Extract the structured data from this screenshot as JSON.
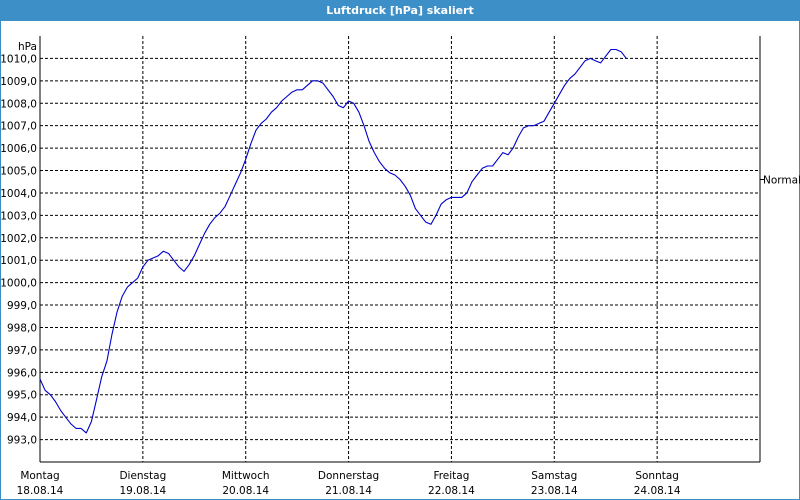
{
  "window": {
    "title": "Luftdruck [hPa] skaliert"
  },
  "chart_data": {
    "type": "line",
    "ylabel": "hPa",
    "ylim": [
      992.0,
      1011.0
    ],
    "yticks": [
      993.0,
      994.0,
      995.0,
      996.0,
      997.0,
      998.0,
      999.0,
      1000.0,
      1001.0,
      1002.0,
      1003.0,
      1004.0,
      1005.0,
      1006.0,
      1007.0,
      1008.0,
      1009.0,
      1010.0
    ],
    "ytick_labels": [
      "993,0",
      "994,0",
      "995,0",
      "996,0",
      "997,0",
      "998,0",
      "999,0",
      "1000,0",
      "1001,0",
      "1002,0",
      "1003,0",
      "1004,0",
      "1005,0",
      "1006,0",
      "1007,0",
      "1008,0",
      "1009,0",
      "1010,0"
    ],
    "xlim": [
      0,
      7
    ],
    "x_ticks": [
      {
        "day": "Montag",
        "date": "18.08.14"
      },
      {
        "day": "Dienstag",
        "date": "19.08.14"
      },
      {
        "day": "Mittwoch",
        "date": "20.08.14"
      },
      {
        "day": "Donnerstag",
        "date": "21.08.14"
      },
      {
        "day": "Freitag",
        "date": "22.08.14"
      },
      {
        "day": "Samstag",
        "date": "23.08.14"
      },
      {
        "day": "Sonntag",
        "date": "24.08.14"
      }
    ],
    "reference": {
      "label": "Normal",
      "value": 1004.6
    },
    "grid": true,
    "series": [
      {
        "color": "#0000cc",
        "points": [
          [
            0.0,
            995.7
          ],
          [
            0.05,
            995.2
          ],
          [
            0.1,
            995.0
          ],
          [
            0.15,
            994.7
          ],
          [
            0.2,
            994.3
          ],
          [
            0.25,
            994.0
          ],
          [
            0.3,
            993.7
          ],
          [
            0.35,
            993.5
          ],
          [
            0.4,
            993.5
          ],
          [
            0.45,
            993.3
          ],
          [
            0.5,
            993.8
          ],
          [
            0.55,
            994.8
          ],
          [
            0.6,
            995.8
          ],
          [
            0.65,
            996.5
          ],
          [
            0.7,
            997.7
          ],
          [
            0.75,
            998.7
          ],
          [
            0.8,
            999.4
          ],
          [
            0.85,
            999.8
          ],
          [
            0.9,
            1000.0
          ],
          [
            0.95,
            1000.2
          ],
          [
            1.0,
            1000.7
          ],
          [
            1.05,
            1001.0
          ],
          [
            1.1,
            1001.1
          ],
          [
            1.15,
            1001.2
          ],
          [
            1.2,
            1001.4
          ],
          [
            1.25,
            1001.3
          ],
          [
            1.3,
            1001.0
          ],
          [
            1.35,
            1000.7
          ],
          [
            1.4,
            1000.5
          ],
          [
            1.45,
            1000.8
          ],
          [
            1.5,
            1001.2
          ],
          [
            1.55,
            1001.7
          ],
          [
            1.6,
            1002.2
          ],
          [
            1.65,
            1002.6
          ],
          [
            1.7,
            1002.9
          ],
          [
            1.75,
            1003.1
          ],
          [
            1.8,
            1003.4
          ],
          [
            1.85,
            1003.9
          ],
          [
            1.9,
            1004.4
          ],
          [
            1.95,
            1004.9
          ],
          [
            2.0,
            1005.5
          ],
          [
            2.05,
            1006.2
          ],
          [
            2.1,
            1006.8
          ],
          [
            2.15,
            1007.1
          ],
          [
            2.2,
            1007.3
          ],
          [
            2.25,
            1007.6
          ],
          [
            2.3,
            1007.8
          ],
          [
            2.35,
            1008.1
          ],
          [
            2.4,
            1008.3
          ],
          [
            2.45,
            1008.5
          ],
          [
            2.5,
            1008.6
          ],
          [
            2.55,
            1008.6
          ],
          [
            2.6,
            1008.8
          ],
          [
            2.65,
            1009.0
          ],
          [
            2.7,
            1009.0
          ],
          [
            2.75,
            1008.9
          ],
          [
            2.8,
            1008.6
          ],
          [
            2.85,
            1008.3
          ],
          [
            2.9,
            1007.9
          ],
          [
            2.95,
            1007.8
          ],
          [
            3.0,
            1008.1
          ],
          [
            3.05,
            1008.0
          ],
          [
            3.1,
            1007.6
          ],
          [
            3.15,
            1007.0
          ],
          [
            3.2,
            1006.3
          ],
          [
            3.25,
            1005.8
          ],
          [
            3.3,
            1005.4
          ],
          [
            3.35,
            1005.1
          ],
          [
            3.4,
            1004.9
          ],
          [
            3.45,
            1004.8
          ],
          [
            3.5,
            1004.6
          ],
          [
            3.55,
            1004.3
          ],
          [
            3.6,
            1003.9
          ],
          [
            3.65,
            1003.3
          ],
          [
            3.7,
            1003.0
          ],
          [
            3.75,
            1002.7
          ],
          [
            3.8,
            1002.6
          ],
          [
            3.85,
            1003.0
          ],
          [
            3.9,
            1003.5
          ],
          [
            3.95,
            1003.7
          ],
          [
            4.0,
            1003.8
          ],
          [
            4.05,
            1003.8
          ],
          [
            4.1,
            1003.8
          ],
          [
            4.15,
            1004.0
          ],
          [
            4.2,
            1004.5
          ],
          [
            4.25,
            1004.8
          ],
          [
            4.3,
            1005.1
          ],
          [
            4.35,
            1005.2
          ],
          [
            4.4,
            1005.2
          ],
          [
            4.45,
            1005.5
          ],
          [
            4.5,
            1005.8
          ],
          [
            4.55,
            1005.7
          ],
          [
            4.6,
            1006.0
          ],
          [
            4.65,
            1006.5
          ],
          [
            4.7,
            1006.9
          ],
          [
            4.75,
            1007.0
          ],
          [
            4.8,
            1007.0
          ],
          [
            4.85,
            1007.1
          ],
          [
            4.9,
            1007.2
          ],
          [
            4.95,
            1007.6
          ],
          [
            5.0,
            1008.0
          ],
          [
            5.05,
            1008.4
          ],
          [
            5.1,
            1008.8
          ],
          [
            5.15,
            1009.1
          ],
          [
            5.2,
            1009.3
          ],
          [
            5.25,
            1009.6
          ],
          [
            5.3,
            1009.9
          ],
          [
            5.35,
            1010.0
          ],
          [
            5.4,
            1009.9
          ],
          [
            5.45,
            1009.8
          ],
          [
            5.5,
            1010.1
          ],
          [
            5.55,
            1010.4
          ],
          [
            5.6,
            1010.4
          ],
          [
            5.65,
            1010.3
          ],
          [
            5.7,
            1010.0
          ]
        ]
      }
    ]
  }
}
